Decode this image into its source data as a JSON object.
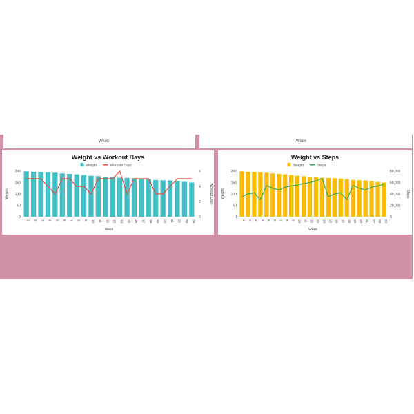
{
  "top_partial": {
    "xlabel": "Week"
  },
  "chart_data": [
    {
      "type": "bar+line",
      "title": "Weight vs Workout Days",
      "xlabel": "Week",
      "ylabel": "Weight",
      "y2label": "Workout Days",
      "categories": [
        "1",
        "2",
        "3",
        "4",
        "5",
        "6",
        "7",
        "8",
        "9",
        "10",
        "11",
        "12",
        "13",
        "14",
        "15",
        "16",
        "17",
        "18",
        "19",
        "20",
        "21",
        "22",
        "23",
        "24"
      ],
      "ylim": [
        0,
        200
      ],
      "yticks": [
        "0",
        "50",
        "100",
        "150",
        "200"
      ],
      "y2lim": [
        0,
        6
      ],
      "y2ticks": [
        "0",
        "2",
        "4",
        "6"
      ],
      "series": [
        {
          "name": "Weight",
          "type": "bar",
          "color": "#45bec6",
          "values": [
            199,
            197,
            196,
            195,
            193,
            190,
            188,
            186,
            183,
            180,
            178,
            175,
            174,
            171,
            170,
            169,
            167,
            165,
            161,
            160,
            159,
            156,
            153,
            150
          ]
        },
        {
          "name": "Workout Days",
          "type": "line",
          "axis": "right",
          "color": "#e8483d",
          "values": [
            5,
            5,
            5,
            4,
            3,
            5,
            5,
            4,
            4,
            3,
            5,
            5,
            5,
            6,
            3,
            5,
            5,
            5,
            3,
            3,
            4,
            5,
            5,
            5
          ]
        }
      ]
    },
    {
      "type": "bar+line",
      "title": "Weight vs Steps",
      "xlabel": "Week",
      "ylabel": "Weight",
      "y2label": "Steps",
      "categories": [
        "1",
        "2",
        "3",
        "4",
        "5",
        "6",
        "7",
        "8",
        "9",
        "10",
        "11",
        "12",
        "13",
        "14",
        "15",
        "16",
        "17",
        "18",
        "19",
        "20",
        "21",
        "22",
        "23",
        "24"
      ],
      "ylim": [
        0,
        200
      ],
      "yticks": [
        "0",
        "50",
        "100",
        "150",
        "200"
      ],
      "y2lim": [
        0,
        80000
      ],
      "y2ticks": [
        "0",
        "20,000",
        "40,000",
        "60,000",
        "80,000"
      ],
      "series": [
        {
          "name": "Weight",
          "type": "bar",
          "color": "#fbbc04",
          "values": [
            199,
            197,
            196,
            195,
            193,
            190,
            188,
            186,
            183,
            180,
            178,
            175,
            174,
            171,
            170,
            169,
            167,
            165,
            161,
            160,
            159,
            156,
            153,
            150
          ]
        },
        {
          "name": "Steps",
          "type": "line",
          "axis": "right",
          "color": "#34a853",
          "values": [
            35000,
            40000,
            42000,
            30000,
            55000,
            50000,
            47000,
            52000,
            54000,
            56000,
            58000,
            60000,
            63000,
            67000,
            35000,
            40000,
            42000,
            30000,
            55000,
            50000,
            47000,
            52000,
            54000,
            57000
          ]
        }
      ]
    }
  ]
}
